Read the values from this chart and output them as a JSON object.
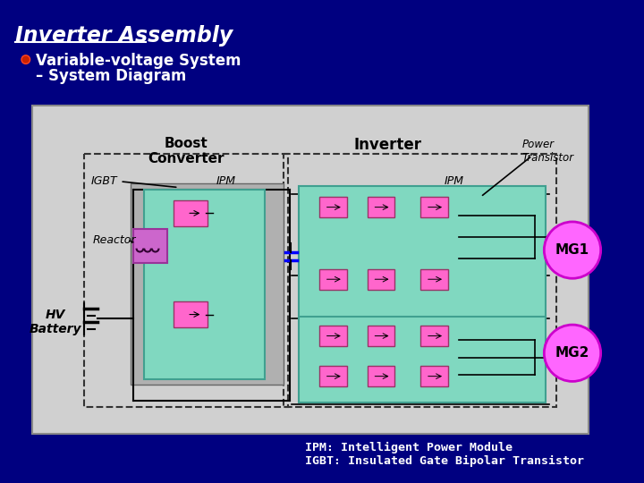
{
  "bg_color": "#000080",
  "slide_bg": "#d8d8d8",
  "title": "Inverter Assembly",
  "subtitle1": "Variable-voltage System",
  "subtitle2": "– System Diagram",
  "teal_color": "#80d8c0",
  "teal_edge": "#40a090",
  "pink_color": "#ff66cc",
  "pink_edge": "#993366",
  "gray_box": "#a8a8a8",
  "dashed_border": "#333333",
  "footnote1": "IPM: Intelligent Power Module",
  "footnote2": "IGBT: Insulated Gate Bipolar Transistor",
  "label_boost": "Boost\nConverter",
  "label_inverter": "Inverter",
  "label_power_transistor": "Power\nTransistor",
  "label_igbt": "IGBT",
  "label_ipm1": "IPM",
  "label_ipm2": "IPM",
  "label_reactor": "Reactor",
  "label_hv_battery": "HV\nBattery",
  "label_mg1": "MG1",
  "label_mg2": "MG2"
}
